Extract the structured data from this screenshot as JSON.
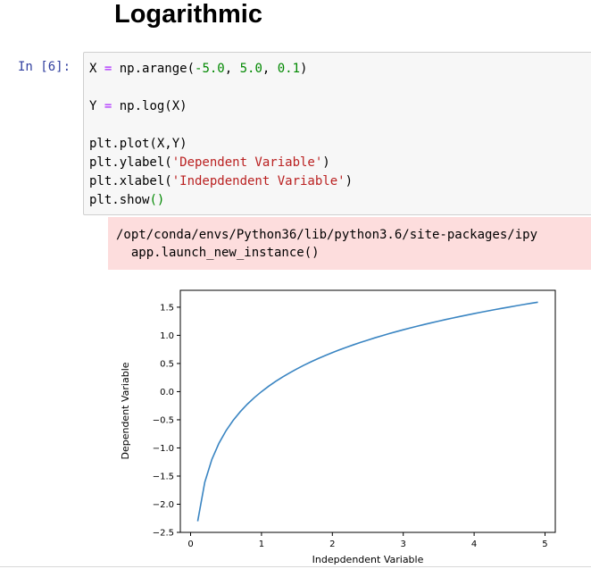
{
  "notebook": {
    "heading": "Logarithmic",
    "cell": {
      "prompt": "In [6]:",
      "code_lines": [
        [
          {
            "t": "X "
          },
          {
            "t": "=",
            "c": "op"
          },
          {
            "t": " np.arange("
          },
          {
            "t": "-5.0",
            "c": "num"
          },
          {
            "t": ", "
          },
          {
            "t": "5.0",
            "c": "num"
          },
          {
            "t": ", "
          },
          {
            "t": "0.1",
            "c": "num"
          },
          {
            "t": ")"
          }
        ],
        [],
        [
          {
            "t": "Y "
          },
          {
            "t": "=",
            "c": "op"
          },
          {
            "t": " np.log(X)"
          }
        ],
        [],
        [
          {
            "t": "plt.plot(X,Y)"
          }
        ],
        [
          {
            "t": "plt.ylabel("
          },
          {
            "t": "'Dependent Variable'",
            "c": "str"
          },
          {
            "t": ")"
          }
        ],
        [
          {
            "t": "plt.xlabel("
          },
          {
            "t": "'Indepdendent Variable'",
            "c": "str"
          },
          {
            "t": ")"
          }
        ],
        [
          {
            "t": "plt.show"
          },
          {
            "t": "()",
            "c": "paren"
          }
        ]
      ]
    },
    "stderr": {
      "lines": [
        "/opt/conda/envs/Python36/lib/python3.6/site-packages/ipy",
        "  app.launch_new_instance()"
      ]
    }
  },
  "colors": {
    "line": "#3a85c2",
    "stderr_bg": "#fddddd",
    "prompt": "#303f9f"
  },
  "chart_data": {
    "type": "line",
    "title": "",
    "xlabel": "Indepdendent Variable",
    "ylabel": "Dependent Variable",
    "xlim": [
      -0.145,
      5.145
    ],
    "ylim": [
      -2.5,
      1.8
    ],
    "xticks": [
      0,
      1,
      2,
      3,
      4,
      5
    ],
    "xtick_labels": [
      "0",
      "1",
      "2",
      "3",
      "4",
      "5"
    ],
    "yticks": [
      -2.5,
      -2.0,
      -1.5,
      -1.0,
      -0.5,
      0.0,
      0.5,
      1.0,
      1.5
    ],
    "ytick_labels": [
      "−2.5",
      "−2.0",
      "−1.5",
      "−1.0",
      "−0.5",
      "0.0",
      "0.5",
      "1.0",
      "1.5"
    ],
    "grid": false,
    "series": [
      {
        "x": [
          0.1,
          0.2,
          0.3,
          0.4,
          0.5,
          0.6,
          0.7,
          0.8,
          0.9,
          1.0,
          1.1,
          1.2,
          1.3,
          1.4,
          1.5,
          1.6,
          1.7,
          1.8,
          1.9,
          2.0,
          2.1,
          2.2,
          2.3,
          2.4,
          2.5,
          2.6,
          2.7,
          2.8,
          2.9,
          3.0,
          3.1,
          3.2,
          3.3,
          3.4,
          3.5,
          3.6,
          3.7,
          3.8,
          3.9,
          4.0,
          4.1,
          4.2,
          4.3,
          4.4,
          4.5,
          4.6,
          4.7,
          4.8,
          4.9
        ],
        "y": [
          -2.303,
          -1.609,
          -1.204,
          -0.916,
          -0.693,
          -0.511,
          -0.357,
          -0.223,
          -0.105,
          0.0,
          0.095,
          0.182,
          0.262,
          0.336,
          0.405,
          0.47,
          0.531,
          0.588,
          0.642,
          0.693,
          0.742,
          0.788,
          0.833,
          0.875,
          0.916,
          0.956,
          0.993,
          1.03,
          1.065,
          1.099,
          1.131,
          1.163,
          1.194,
          1.224,
          1.253,
          1.281,
          1.308,
          1.335,
          1.361,
          1.386,
          1.411,
          1.435,
          1.459,
          1.482,
          1.504,
          1.526,
          1.548,
          1.569,
          1.589
        ]
      }
    ]
  }
}
